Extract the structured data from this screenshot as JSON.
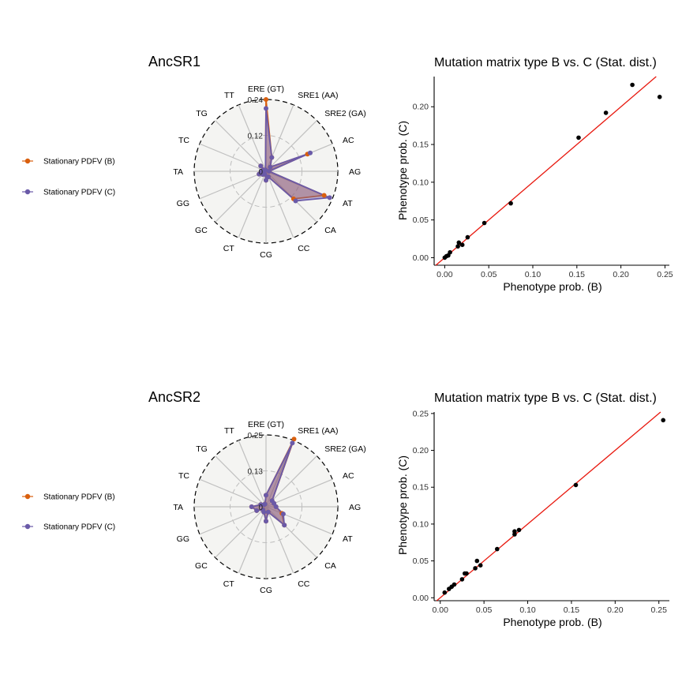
{
  "legend": {
    "entries": [
      {
        "label": "Stationary PDFV (B)",
        "color": "#d95f0e"
      },
      {
        "label": "Stationary PDFV (C)",
        "color": "#6a5aa8"
      }
    ]
  },
  "chart_data": [
    {
      "type": "radar",
      "title": "AncSR1",
      "axes": [
        "ERE (GT)",
        "SRE1 (AA)",
        "SRE2 (GA)",
        "AC",
        "AG",
        "AT",
        "CA",
        "CC",
        "CG",
        "CT",
        "GC",
        "GG",
        "TA",
        "TC",
        "TG",
        "TT"
      ],
      "radial_ticks": [
        "0",
        "0.12",
        "0.24"
      ],
      "rmax": 0.24,
      "series": [
        {
          "name": "Stationary PDFV (B)",
          "color": "#d95f0e",
          "values": [
            0.24,
            0.05,
            0.02,
            0.15,
            0.01,
            0.21,
            0.13,
            0.02,
            0.03,
            0.01,
            0.015,
            0.025,
            0.015,
            0.01,
            0.025,
            0.005
          ]
        },
        {
          "name": "Stationary PDFV (C)",
          "color": "#6a5aa8",
          "values": [
            0.21,
            0.05,
            0.02,
            0.16,
            0.01,
            0.23,
            0.14,
            0.02,
            0.03,
            0.01,
            0.015,
            0.025,
            0.015,
            0.01,
            0.025,
            0.005
          ]
        }
      ]
    },
    {
      "type": "scatter",
      "title": "Mutation matrix type B vs. C (Stat. dist.)",
      "xlabel": "Phenotype prob. (B)",
      "ylabel": "Phenotype prob. (C)",
      "xlim": [
        -0.012,
        0.255
      ],
      "ylim": [
        -0.01,
        0.24
      ],
      "xticks": [
        "0.00",
        "0.05",
        "0.10",
        "0.15",
        "0.20",
        "0.25"
      ],
      "yticks": [
        "0.00",
        "0.05",
        "0.10",
        "0.15",
        "0.20"
      ],
      "reference_line": "y = x",
      "points": [
        [
          0.0,
          0.0
        ],
        [
          0.002,
          0.002
        ],
        [
          0.004,
          0.003
        ],
        [
          0.006,
          0.007
        ],
        [
          0.015,
          0.015
        ],
        [
          0.016,
          0.02
        ],
        [
          0.02,
          0.017
        ],
        [
          0.026,
          0.027
        ],
        [
          0.045,
          0.046
        ],
        [
          0.075,
          0.072
        ],
        [
          0.152,
          0.159
        ],
        [
          0.183,
          0.192
        ],
        [
          0.213,
          0.229
        ],
        [
          0.244,
          0.213
        ]
      ]
    },
    {
      "type": "radar",
      "title": "AncSR2",
      "axes": [
        "ERE (GT)",
        "SRE1 (AA)",
        "SRE2 (GA)",
        "AC",
        "AG",
        "AT",
        "CA",
        "CC",
        "CG",
        "CT",
        "GC",
        "GG",
        "TA",
        "TC",
        "TG",
        "TT"
      ],
      "radial_ticks": [
        "0",
        "0.13",
        "0.25"
      ],
      "rmax": 0.25,
      "series": [
        {
          "name": "Stationary PDFV (B)",
          "color": "#d95f0e",
          "values": [
            0.04,
            0.255,
            0.03,
            0.03,
            0.035,
            0.06,
            0.09,
            0.02,
            0.05,
            0.02,
            0.015,
            0.035,
            0.05,
            0.02,
            0.01,
            0.01
          ]
        },
        {
          "name": "Stationary PDFV (C)",
          "color": "#6a5aa8",
          "values": [
            0.04,
            0.24,
            0.03,
            0.03,
            0.035,
            0.065,
            0.09,
            0.02,
            0.05,
            0.02,
            0.015,
            0.035,
            0.05,
            0.02,
            0.01,
            0.01
          ]
        }
      ]
    },
    {
      "type": "scatter",
      "title": "Mutation matrix type B vs. C (Stat. dist.)",
      "xlabel": "Phenotype prob. (B)",
      "ylabel": "Phenotype prob. (C)",
      "xlim": [
        -0.007,
        0.262
      ],
      "ylim": [
        -0.004,
        0.252
      ],
      "xticks": [
        "0.00",
        "0.05",
        "0.10",
        "0.15",
        "0.20",
        "0.25"
      ],
      "yticks": [
        "0.00",
        "0.05",
        "0.10",
        "0.15",
        "0.20",
        "0.25"
      ],
      "reference_line": "y = x",
      "points": [
        [
          0.005,
          0.007
        ],
        [
          0.01,
          0.012
        ],
        [
          0.013,
          0.015
        ],
        [
          0.016,
          0.018
        ],
        [
          0.025,
          0.025
        ],
        [
          0.028,
          0.033
        ],
        [
          0.03,
          0.033
        ],
        [
          0.04,
          0.04
        ],
        [
          0.042,
          0.05
        ],
        [
          0.046,
          0.044
        ],
        [
          0.065,
          0.066
        ],
        [
          0.085,
          0.086
        ],
        [
          0.085,
          0.09
        ],
        [
          0.09,
          0.092
        ],
        [
          0.155,
          0.153
        ],
        [
          0.255,
          0.241
        ]
      ]
    }
  ]
}
